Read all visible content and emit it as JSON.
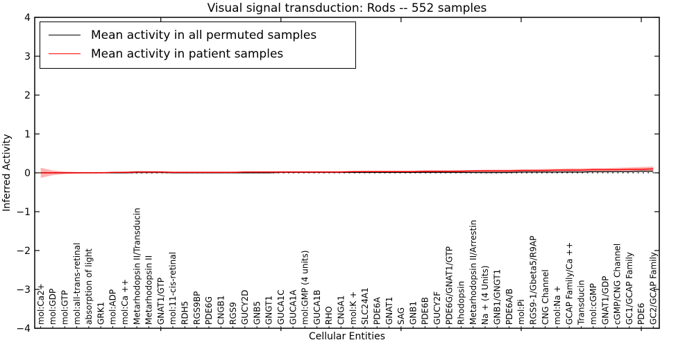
{
  "chart_data": {
    "type": "line",
    "title": "Visual signal transduction: Rods -- 552 samples",
    "xlabel": "Cellular Entities",
    "ylabel": "Inferred Activity",
    "ylim": [
      -4,
      4
    ],
    "grid": false,
    "legend_position": "upper left",
    "background_color": "#ffffff",
    "y_ticks": [
      {
        "value": -4,
        "label": "−4"
      },
      {
        "value": -3,
        "label": "−3"
      },
      {
        "value": -2,
        "label": "−2"
      },
      {
        "value": -1,
        "label": "−1"
      },
      {
        "value": 0,
        "label": "0"
      },
      {
        "value": 1,
        "label": "1"
      },
      {
        "value": 2,
        "label": "2"
      },
      {
        "value": 3,
        "label": "3"
      },
      {
        "value": 4,
        "label": "4"
      }
    ],
    "categories": [
      "mol:Ca2+",
      "mol:GDP",
      "mol:GTP",
      "mol:all-trans-retinal",
      "absorption of light",
      "GRK1",
      "mol:ADP",
      "mol:Ca ++",
      "Metarhodopsin II/Transducin",
      "Metarhodopsin II",
      "GNAT1/GTP",
      "mol:11-cis-retinal",
      "RDH5",
      "RGS9BP",
      "PDE6G",
      "CNGB1",
      "RGS9",
      "GUCY2D",
      "GNB5",
      "GNGT1",
      "GUCA1C",
      "GUCA1A",
      "mol:GMP (4 units)",
      "GUCA1B",
      "RHO",
      "CNGA1",
      "mol:K +",
      "SLC24A1",
      "PDE6A",
      "GNAT1",
      "SAG",
      "GNB1",
      "PDE6B",
      "GUCY2F",
      "PDE6G/GNAT1/GTP",
      "Rhodopsin",
      "Metarhodopsin II/Arrestin",
      "Na + (4 Units)",
      "GNB1/GNGT1",
      "PDE6A/B",
      "mol:Pi",
      "RGS9-1/Gbeta5/R9AP",
      "CNG Channel",
      "mol:Na +",
      "GCAP Family/Ca ++",
      "Transducin",
      "mol:cGMP",
      "GNAT1/GDP",
      "cGMP/CNG Channel",
      "GC1/GCAP Family",
      "PDE6",
      "GC2/GCAP Family"
    ],
    "zero_line": {
      "color": "#000000",
      "style": "dotted",
      "value": 0
    },
    "series": [
      {
        "name": "Mean activity in all permuted samples",
        "color": "#000000",
        "line_width": 1.2,
        "values": [
          0,
          0,
          0,
          0,
          0,
          0,
          0,
          0,
          0.01,
          0.01,
          0.01,
          0,
          0,
          0,
          0,
          0,
          0,
          0,
          0,
          0,
          0.01,
          0.01,
          0.01,
          0.01,
          0.01,
          0.01,
          0.01,
          0.01,
          0.01,
          0.01,
          0.01,
          0.01,
          0.01,
          0.01,
          0.01,
          0.01,
          0.01,
          0.01,
          0.01,
          0.01,
          0.02,
          0.02,
          0.02,
          0.02,
          0.02,
          0.02,
          0.03,
          0.03,
          0.03,
          0.03,
          0.04,
          0.04
        ],
        "band": {
          "color": "#999999",
          "opacity": 0.35,
          "upper": [
            0.01,
            0.01,
            0.01,
            0.01,
            0.01,
            0.01,
            0.01,
            0.02,
            0.05,
            0.05,
            0.03,
            0.01,
            0.01,
            0.01,
            0.01,
            0.01,
            0.01,
            0.01,
            0.01,
            0.02,
            0.02,
            0.02,
            0.02,
            0.02,
            0.02,
            0.02,
            0.02,
            0.02,
            0.02,
            0.02,
            0.02,
            0.02,
            0.02,
            0.02,
            0.02,
            0.02,
            0.02,
            0.02,
            0.02,
            0.03,
            0.03,
            0.03,
            0.03,
            0.03,
            0.04,
            0.04,
            0.05,
            0.05,
            0.05,
            0.06,
            0.07,
            0.07
          ],
          "lower": [
            -0.01,
            -0.01,
            -0.01,
            -0.01,
            -0.01,
            -0.01,
            -0.01,
            -0.02,
            -0.03,
            -0.03,
            -0.02,
            -0.01,
            -0.01,
            -0.01,
            -0.01,
            -0.01,
            -0.01,
            -0.01,
            -0.01,
            -0.01,
            -0.01,
            -0.01,
            -0.01,
            -0.01,
            -0.01,
            -0.01,
            -0.01,
            -0.01,
            -0.01,
            -0.01,
            -0.01,
            -0.01,
            -0.01,
            -0.01,
            -0.01,
            -0.01,
            -0.02,
            -0.03,
            -0.03,
            -0.02,
            -0.01,
            -0.01,
            -0.01,
            -0.01,
            0,
            0,
            0,
            0,
            0.01,
            0.01,
            0.01,
            0.01
          ]
        }
      },
      {
        "name": "Mean activity in patient samples",
        "color": "#ff0000",
        "line_width": 1.5,
        "values": [
          0,
          0,
          0,
          0,
          0,
          0,
          0.01,
          0.01,
          0.02,
          0.02,
          0.02,
          0.01,
          0.01,
          0.01,
          0.01,
          0.01,
          0.01,
          0.02,
          0.02,
          0.02,
          0.02,
          0.02,
          0.02,
          0.02,
          0.02,
          0.02,
          0.03,
          0.03,
          0.03,
          0.03,
          0.03,
          0.03,
          0.04,
          0.04,
          0.04,
          0.04,
          0.05,
          0.05,
          0.05,
          0.05,
          0.06,
          0.06,
          0.06,
          0.07,
          0.07,
          0.07,
          0.08,
          0.08,
          0.08,
          0.09,
          0.09,
          0.1
        ],
        "band": {
          "color": "#ff0000",
          "opacity": 0.3,
          "upper": [
            0.13,
            0.06,
            0.03,
            0.02,
            0.02,
            0.02,
            0.02,
            0.03,
            0.04,
            0.04,
            0.04,
            0.03,
            0.03,
            0.03,
            0.03,
            0.03,
            0.03,
            0.03,
            0.03,
            0.03,
            0.04,
            0.04,
            0.04,
            0.04,
            0.04,
            0.04,
            0.04,
            0.05,
            0.05,
            0.05,
            0.05,
            0.05,
            0.06,
            0.06,
            0.06,
            0.07,
            0.07,
            0.08,
            0.08,
            0.08,
            0.09,
            0.09,
            0.1,
            0.1,
            0.11,
            0.11,
            0.12,
            0.12,
            0.13,
            0.14,
            0.15,
            0.16
          ],
          "lower": [
            -0.13,
            -0.06,
            -0.03,
            -0.02,
            -0.01,
            -0.01,
            -0.01,
            -0.01,
            0,
            0,
            0,
            -0.01,
            -0.01,
            -0.01,
            -0.01,
            -0.01,
            0,
            0,
            0,
            0,
            0,
            0,
            0,
            0,
            0,
            0,
            0.01,
            0.01,
            0.01,
            0.01,
            0.01,
            0.01,
            0.01,
            0.01,
            0.02,
            0.02,
            0.02,
            0.02,
            0.02,
            0.02,
            0.03,
            0.03,
            0.03,
            0.03,
            0.03,
            0.04,
            0.04,
            0.04,
            0.04,
            0.04,
            0.04,
            0.04
          ]
        }
      }
    ]
  }
}
